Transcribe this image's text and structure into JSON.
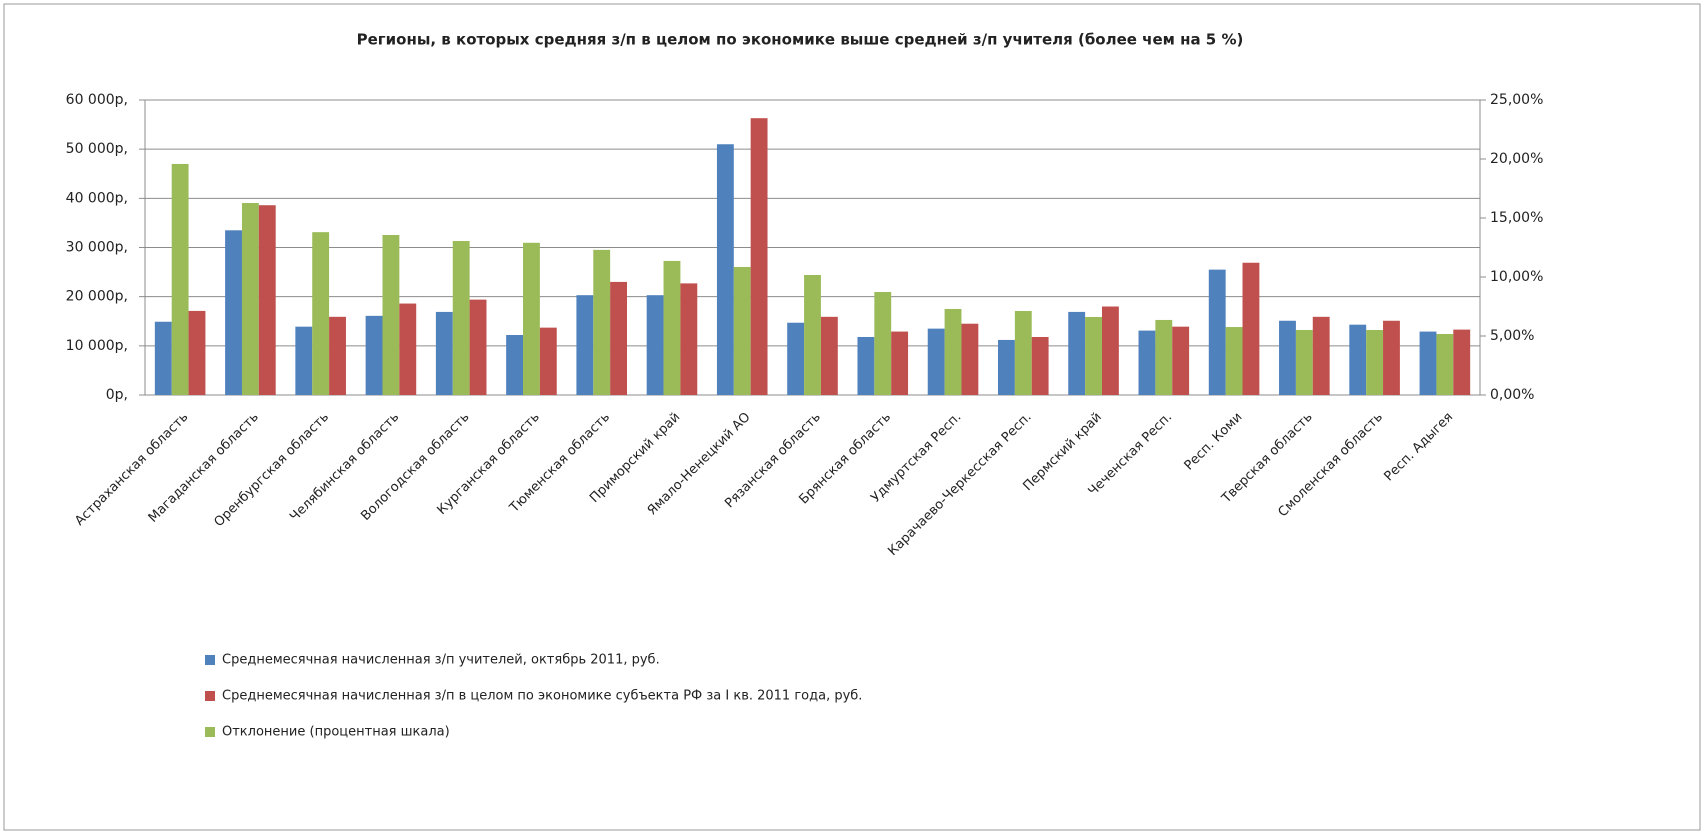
{
  "chart_data": {
    "type": "bar",
    "title": "Регионы, в которых средняя з/п в целом по экономике выше средней з/п учителя (более чем на 5 %)",
    "categories": [
      "Астраханская область",
      "Магаданская область",
      "Оренбургская область",
      "Челябинская область",
      "Вологодская область",
      "Курганская область",
      "Тюменская область",
      "Приморский край",
      "Ямало-Ненецкий АО",
      "Рязанская область",
      "Брянская область",
      "Удмуртская Респ.",
      "Карачаево-Черкесская Респ.",
      "Пермский край",
      "Чеченская Респ.",
      "Респ. Коми",
      "Тверская область",
      "Смоленская область",
      "Респ. Адыгея"
    ],
    "series": [
      {
        "name": "Среднемесячная начисленная з/п учителей, октябрь 2011, руб.",
        "color": "#4f81bd",
        "values": [
          14900,
          33500,
          13900,
          16100,
          16900,
          12200,
          20300,
          20300,
          51000,
          14700,
          11800,
          13500,
          11200,
          16900,
          13100,
          25500,
          15100,
          14300,
          12900
        ]
      },
      {
        "name": "Среднемесячная начисленная з/п в целом по экономике субъекта РФ за  I кв. 2011 года, руб.",
        "color": "#c0504d",
        "values": [
          17100,
          38600,
          15900,
          18600,
          19400,
          13700,
          23000,
          22700,
          56300,
          15900,
          12900,
          14500,
          11800,
          18000,
          13900,
          26900,
          15900,
          15100,
          13300
        ]
      },
      {
        "name": "Отклонение (процентная шкала)",
        "color": "#9bbb59",
        "axis": "y2",
        "values": [
          19.58,
          16.27,
          13.8,
          13.56,
          13.05,
          12.9,
          12.3,
          11.36,
          10.85,
          10.17,
          8.73,
          7.29,
          7.12,
          6.61,
          6.36,
          5.76,
          5.51,
          5.51,
          5.17
        ]
      }
    ],
    "ylim": [
      0,
      60000
    ],
    "yticks": [
      {
        "value": 0,
        "label": "0р,"
      },
      {
        "value": 10000,
        "label": "10 000р,"
      },
      {
        "value": 20000,
        "label": "20 000р,"
      },
      {
        "value": 30000,
        "label": "30 000р,"
      },
      {
        "value": 40000,
        "label": "40 000р,"
      },
      {
        "value": 50000,
        "label": "50 000р,"
      },
      {
        "value": 60000,
        "label": "60 000р,"
      }
    ],
    "y2lim": [
      0,
      25
    ],
    "y2ticks": [
      {
        "value": 0,
        "label": "0,00%"
      },
      {
        "value": 5,
        "label": "5,00%"
      },
      {
        "value": 10,
        "label": "10,00%"
      },
      {
        "value": 15,
        "label": "15,00%"
      },
      {
        "value": 20,
        "label": "20,00%"
      },
      {
        "value": 25,
        "label": "25,00%"
      }
    ],
    "grid": true
  }
}
